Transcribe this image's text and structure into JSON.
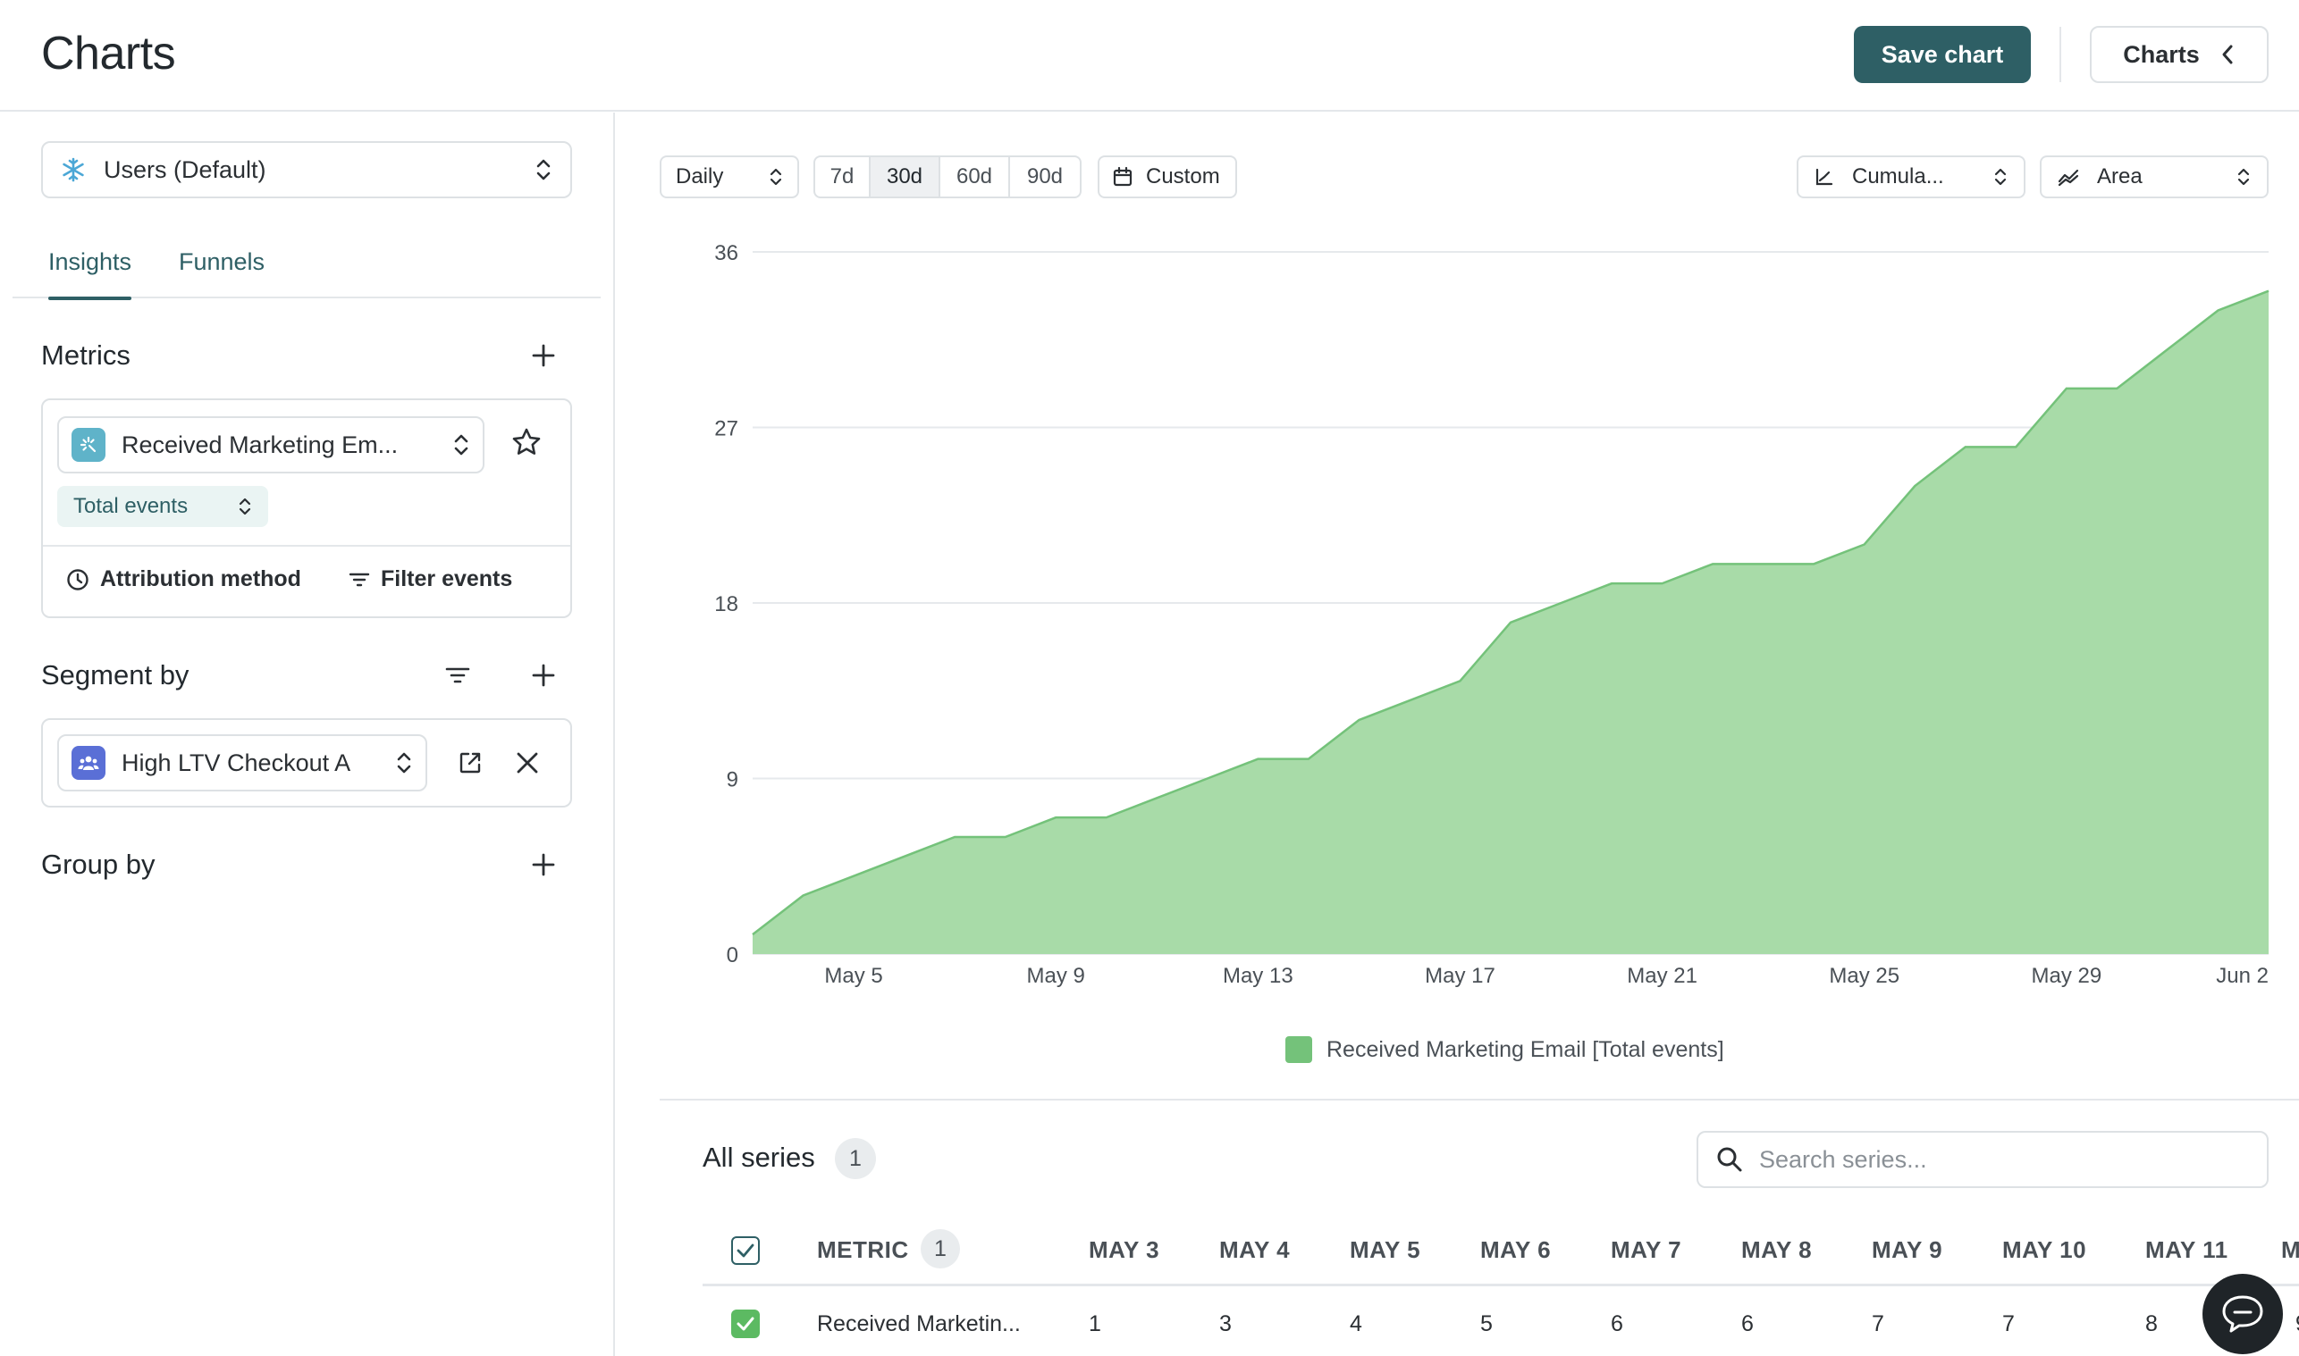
{
  "header": {
    "title": "Charts",
    "save_label": "Save chart",
    "charts_label": "Charts"
  },
  "sidebar": {
    "dataset_select": "Users (Default)",
    "tabs": [
      {
        "label": "Insights",
        "active": true
      },
      {
        "label": "Funnels",
        "active": false
      }
    ],
    "metrics": {
      "title": "Metrics",
      "metric_name": "Received Marketing Em...",
      "aggregation": "Total events",
      "attribution_label": "Attribution method",
      "filter_label": "Filter events"
    },
    "segment": {
      "title": "Segment by",
      "segment_name": "High LTV Checkout A"
    },
    "group": {
      "title": "Group by"
    }
  },
  "toolbar": {
    "interval": "Daily",
    "ranges": [
      {
        "label": "7d",
        "active": false
      },
      {
        "label": "30d",
        "active": true
      },
      {
        "label": "60d",
        "active": false
      },
      {
        "label": "90d",
        "active": false
      }
    ],
    "custom_label": "Custom",
    "measure": "Cumula...",
    "chart_type": "Area"
  },
  "chart_data": {
    "type": "area",
    "title": "",
    "xlabel": "",
    "ylabel": "",
    "ylim": [
      0,
      36
    ],
    "yticks": [
      0,
      9,
      18,
      27,
      36
    ],
    "xticks": [
      "May 5",
      "May 9",
      "May 13",
      "May 17",
      "May 21",
      "May 25",
      "May 29",
      "Jun 2"
    ],
    "x": [
      "May 3",
      "May 4",
      "May 5",
      "May 6",
      "May 7",
      "May 8",
      "May 9",
      "May 10",
      "May 11",
      "May 12",
      "May 13",
      "May 14",
      "May 15",
      "May 16",
      "May 17",
      "May 18",
      "May 19",
      "May 20",
      "May 21",
      "May 22",
      "May 23",
      "May 24",
      "May 25",
      "May 26",
      "May 27",
      "May 28",
      "May 29",
      "May 30",
      "May 31",
      "Jun 1",
      "Jun 2"
    ],
    "series": [
      {
        "name": "Received Marketing Email [Total events]",
        "color": "#74c27a",
        "values": [
          1,
          3,
          4,
          5,
          6,
          6,
          7,
          7,
          8,
          9,
          10,
          10,
          12,
          13,
          14,
          17,
          18,
          19,
          19,
          20,
          20,
          20,
          21,
          24,
          26,
          26,
          29,
          29,
          31,
          33,
          34
        ]
      }
    ],
    "grid": true,
    "legend_position": "bottom"
  },
  "legend_label": "Received Marketing Email [Total events]",
  "series_table": {
    "title": "All series",
    "count": "1",
    "search_placeholder": "Search series...",
    "metric_header": "METRIC",
    "metric_count": "1",
    "date_headers": [
      "MAY 3",
      "MAY 4",
      "MAY 5",
      "MAY 6",
      "MAY 7",
      "MAY 8",
      "MAY 9",
      "MAY 10",
      "MAY 11",
      "M"
    ],
    "rows": [
      {
        "name": "Received Marketin...",
        "values": [
          "1",
          "3",
          "4",
          "5",
          "6",
          "6",
          "7",
          "7",
          "8",
          "9"
        ]
      }
    ]
  }
}
